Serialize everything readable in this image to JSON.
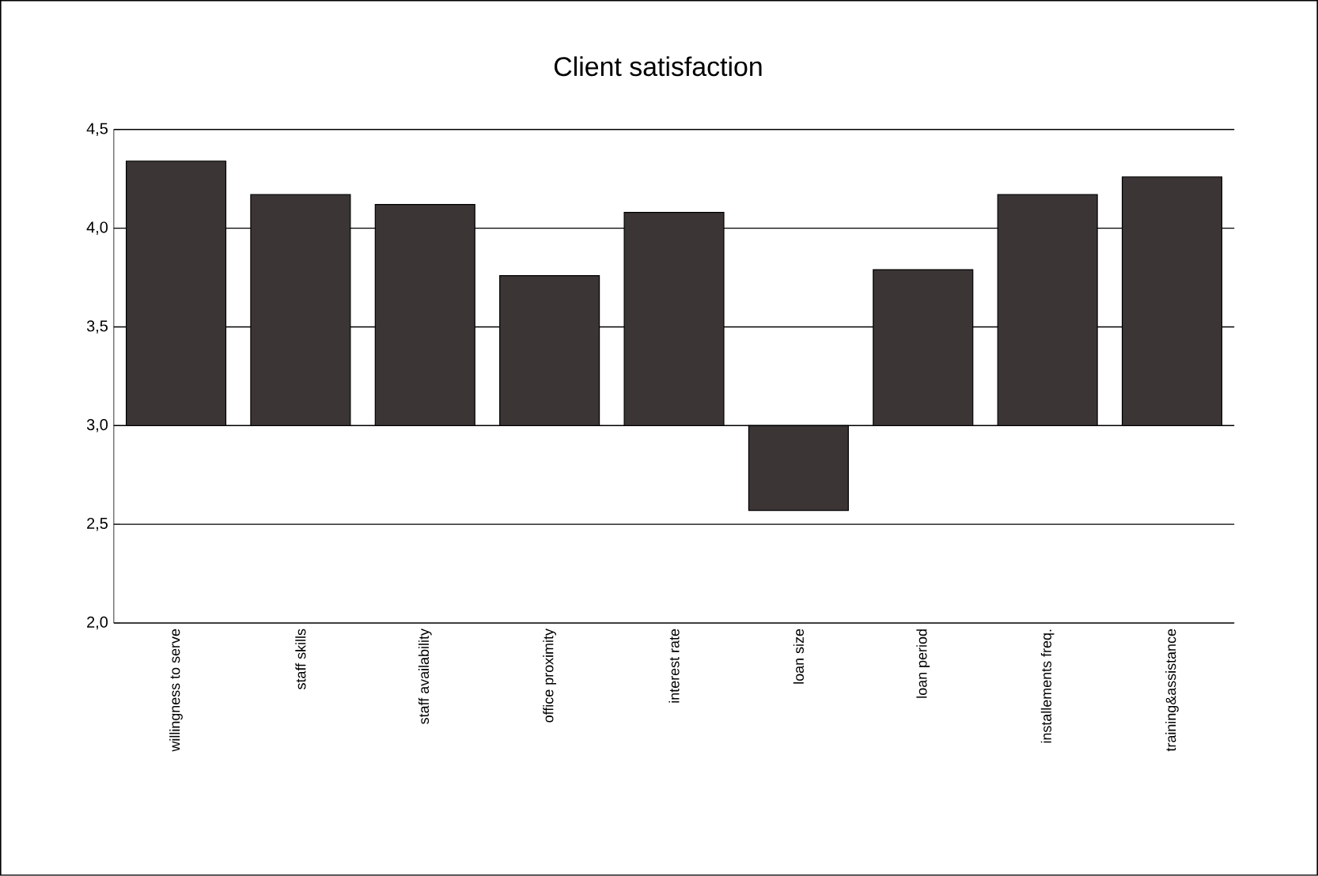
{
  "chart_data": {
    "type": "bar",
    "title": "Client satisfaction",
    "categories": [
      "willingness to serve",
      "staff skills",
      "staff availability",
      "office proximity",
      "interest rate",
      "loan size",
      "loan period",
      "installements freq.",
      "training&assistance"
    ],
    "base": [
      3,
      3,
      3,
      3,
      3,
      3,
      3,
      3,
      3
    ],
    "values": [
      1.34,
      1.17,
      1.12,
      0.76,
      1.08,
      -0.43,
      0.79,
      1.17,
      1.26
    ],
    "color": "#3b3535",
    "ylim": [
      2,
      4.5
    ],
    "yticks": [
      {
        "value": 2,
        "label": "2,0"
      },
      {
        "value": 2.5,
        "label": "2,5"
      },
      {
        "value": 3,
        "label": "3,0"
      },
      {
        "value": 3.5,
        "label": "3,5"
      },
      {
        "value": 4,
        "label": "4,0"
      },
      {
        "value": 4.5,
        "label": "4,5"
      }
    ],
    "grid": "y"
  }
}
